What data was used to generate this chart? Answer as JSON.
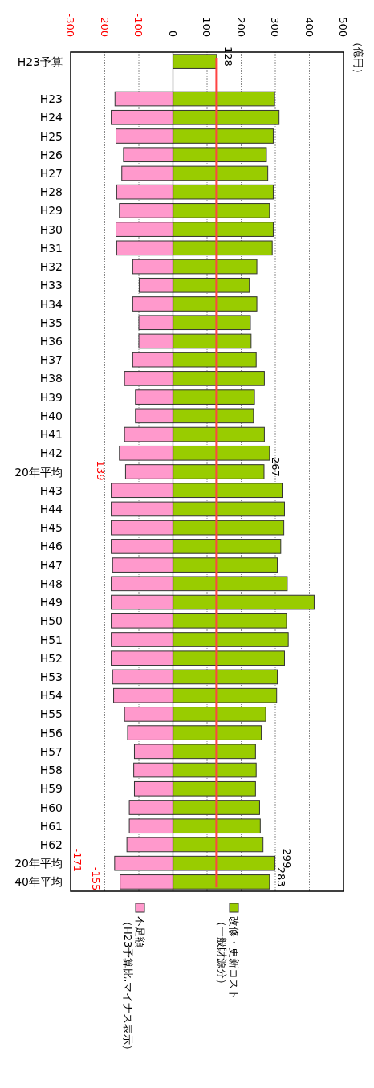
{
  "chart_data": {
    "type": "bar",
    "orientation": "horizontal",
    "categories": [
      "H23予算",
      null,
      "H23",
      "H24",
      "H25",
      "H26",
      "H27",
      "H28",
      "H29",
      "H30",
      "H31",
      "H32",
      "H33",
      "H34",
      "H35",
      "H36",
      "H37",
      "H38",
      "H39",
      "H40",
      "H41",
      "H42",
      "20年平均",
      "H43",
      "H44",
      "H45",
      "H46",
      "H47",
      "H48",
      "H49",
      "H50",
      "H51",
      "H52",
      "H53",
      "H54",
      "H55",
      "H56",
      "H57",
      "H58",
      "H59",
      "H60",
      "H61",
      "H62",
      "20年平均",
      "40年平均"
    ],
    "series": [
      {
        "name": "改修・更新コスト（一般財源分）",
        "color": "#99cc00",
        "values": [
          128,
          null,
          298,
          311,
          294,
          274,
          278,
          294,
          283,
          294,
          291,
          246,
          224,
          246,
          227,
          229,
          244,
          268,
          239,
          236,
          268,
          283,
          267,
          320,
          327,
          325,
          316,
          306,
          335,
          414,
          333,
          338,
          327,
          306,
          304,
          272,
          259,
          242,
          244,
          242,
          254,
          256,
          264,
          299,
          283
        ],
        "value_labels": [
          "128",
          null,
          null,
          null,
          null,
          null,
          null,
          null,
          null,
          null,
          null,
          null,
          null,
          null,
          null,
          null,
          null,
          null,
          null,
          null,
          null,
          null,
          "267",
          null,
          null,
          null,
          null,
          null,
          null,
          null,
          null,
          null,
          null,
          null,
          null,
          null,
          null,
          null,
          null,
          null,
          null,
          null,
          null,
          "299",
          "283"
        ]
      },
      {
        "name": "不足額（H23予算比,マイナス表示）",
        "color": "#ff99cc",
        "values": [
          null,
          null,
          -170,
          -181,
          -167,
          -145,
          -150,
          -165,
          -157,
          -167,
          -165,
          -118,
          -99,
          -118,
          -100,
          -100,
          -118,
          -142,
          -110,
          -110,
          -142,
          -157,
          -139,
          -181,
          -181,
          -181,
          -181,
          -177,
          -181,
          -181,
          -181,
          -181,
          -181,
          -177,
          -174,
          -142,
          -133,
          -113,
          -115,
          -113,
          -128,
          -128,
          -135,
          -171,
          -155
        ],
        "value_labels": [
          null,
          null,
          null,
          null,
          null,
          null,
          null,
          null,
          null,
          null,
          null,
          null,
          null,
          null,
          null,
          null,
          null,
          null,
          null,
          null,
          null,
          null,
          "-139",
          null,
          null,
          null,
          null,
          null,
          null,
          null,
          null,
          null,
          null,
          null,
          null,
          null,
          null,
          null,
          null,
          null,
          null,
          null,
          null,
          "-171",
          "-155"
        ]
      }
    ],
    "xlim": [
      -300,
      500
    ],
    "xticks": [
      -300,
      -200,
      -100,
      0,
      100,
      200,
      300,
      400,
      500
    ],
    "annotations": [
      "（億円）"
    ],
    "stacked": true,
    "ref_lines": [
      {
        "axis": "x",
        "value": 128,
        "color": "#ff4444"
      }
    ],
    "grid": "x",
    "legend": "bottom"
  }
}
